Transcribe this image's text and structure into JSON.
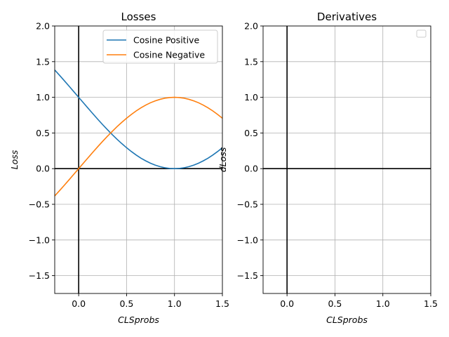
{
  "chart_data": [
    {
      "type": "line",
      "title": "Losses",
      "xlabel": "CLSprobs",
      "ylabel": "Loss",
      "xlim": [
        -0.25,
        1.5
      ],
      "ylim": [
        -1.75,
        2.0
      ],
      "xticks": [
        0.0,
        0.5,
        1.0,
        1.5
      ],
      "xtick_labels": [
        "0.0",
        "0.5",
        "1.0",
        "1.5"
      ],
      "yticks": [
        -1.5,
        -1.0,
        -0.5,
        0.0,
        0.5,
        1.0,
        1.5,
        2.0
      ],
      "ytick_labels": [
        "−1.5",
        "−1.0",
        "−0.5",
        "0.0",
        "0.5",
        "1.0",
        "1.5",
        "2.0"
      ],
      "grid": true,
      "legend": "top-right",
      "series": [
        {
          "name": "Cosine Positive",
          "color": "#1f77b4",
          "x": [
            -0.25,
            -0.2,
            -0.15,
            -0.1,
            -0.05,
            0.0,
            0.05,
            0.1,
            0.15,
            0.2,
            0.25,
            0.3,
            0.35,
            0.4,
            0.45,
            0.5,
            0.55,
            0.6,
            0.65,
            0.7,
            0.75,
            0.8,
            0.85,
            0.9,
            0.95,
            1.0,
            1.05,
            1.1,
            1.15,
            1.2,
            1.25,
            1.3,
            1.35,
            1.4,
            1.45,
            1.5
          ],
          "values": [
            1.383,
            1.309,
            1.233,
            1.156,
            1.078,
            1.0,
            0.922,
            0.844,
            0.767,
            0.691,
            0.617,
            0.546,
            0.477,
            0.412,
            0.351,
            0.293,
            0.24,
            0.191,
            0.147,
            0.109,
            0.076,
            0.049,
            0.028,
            0.012,
            0.003,
            0.0,
            0.003,
            0.012,
            0.028,
            0.049,
            0.076,
            0.109,
            0.147,
            0.191,
            0.24,
            0.293
          ]
        },
        {
          "name": "Cosine Negative",
          "color": "#ff7f0e",
          "x": [
            -0.25,
            -0.2,
            -0.15,
            -0.1,
            -0.05,
            0.0,
            0.05,
            0.1,
            0.15,
            0.2,
            0.25,
            0.3,
            0.35,
            0.4,
            0.45,
            0.5,
            0.55,
            0.6,
            0.65,
            0.7,
            0.75,
            0.8,
            0.85,
            0.9,
            0.95,
            1.0,
            1.05,
            1.1,
            1.15,
            1.2,
            1.25,
            1.3,
            1.35,
            1.4,
            1.45,
            1.5
          ],
          "values": [
            -0.383,
            -0.309,
            -0.233,
            -0.156,
            -0.078,
            0.0,
            0.078,
            0.156,
            0.233,
            0.309,
            0.383,
            0.454,
            0.522,
            0.588,
            0.649,
            0.707,
            0.76,
            0.809,
            0.853,
            0.891,
            0.924,
            0.951,
            0.972,
            0.988,
            0.997,
            1.0,
            0.997,
            0.988,
            0.972,
            0.951,
            0.924,
            0.891,
            0.853,
            0.809,
            0.76,
            0.707
          ]
        }
      ]
    },
    {
      "type": "line",
      "title": "Derivatives",
      "xlabel": "CLSprobs",
      "ylabel": "dLoss",
      "xlim": [
        -0.25,
        1.5
      ],
      "ylim": [
        -1.75,
        2.0
      ],
      "xticks": [
        0.0,
        0.5,
        1.0,
        1.5
      ],
      "xtick_labels": [
        "0.0",
        "0.5",
        "1.0",
        "1.5"
      ],
      "yticks": [
        -1.5,
        -1.0,
        -0.5,
        0.0,
        0.5,
        1.0,
        1.5,
        2.0
      ],
      "ytick_labels": [
        "−1.5",
        "−1.0",
        "−0.5",
        "0.0",
        "0.5",
        "1.0",
        "1.5",
        "2.0"
      ],
      "grid": true,
      "legend": "top-right",
      "series": []
    }
  ],
  "colors": {
    "axis": "#000000",
    "grid": "#b0b0b0",
    "legend_border": "#cccccc"
  }
}
